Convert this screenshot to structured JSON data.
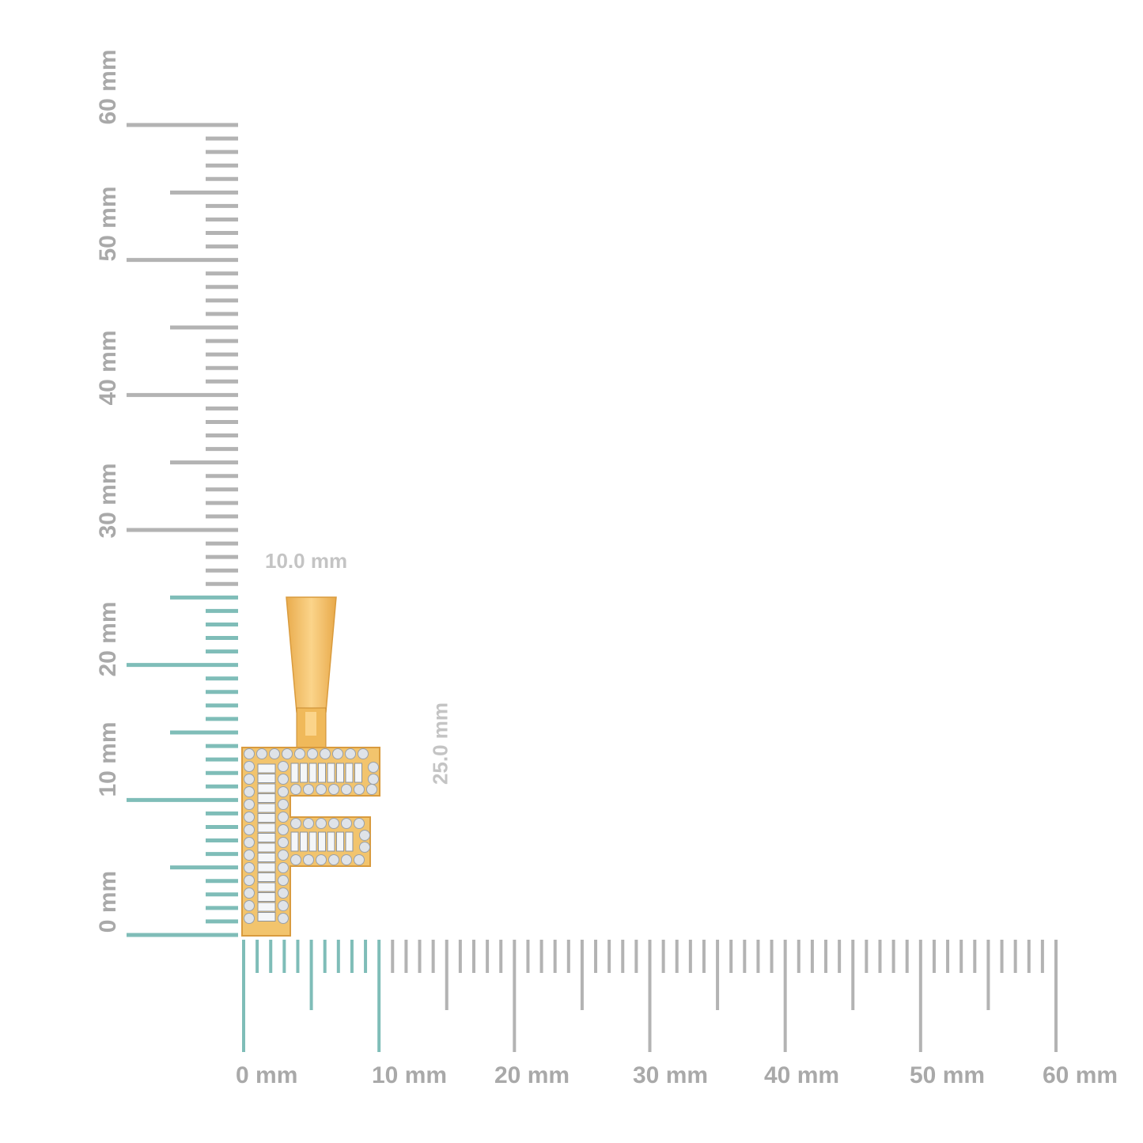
{
  "rulers": {
    "vertical": {
      "labels": [
        "0 mm",
        "10 mm",
        "20 mm",
        "30 mm",
        "40 mm",
        "50 mm",
        "60 mm"
      ],
      "range_mm": [
        0,
        60
      ],
      "highlight_to_mm": 25
    },
    "horizontal": {
      "labels": [
        "0 mm",
        "10 mm",
        "20 mm",
        "30 mm",
        "40 mm",
        "50 mm",
        "60 mm"
      ],
      "range_mm": [
        0,
        60
      ],
      "highlight_to_mm": 10
    },
    "colors": {
      "tick": "#b3b3b3",
      "highlight": "#7fbdb8"
    }
  },
  "dimensions": {
    "width_label": "10.0 mm",
    "height_label": "25.0 mm"
  },
  "product": {
    "description_icon": "letter-f-pendant-icon",
    "metal_color": "#f2c46d",
    "stone_color": "#dfe3e8"
  }
}
